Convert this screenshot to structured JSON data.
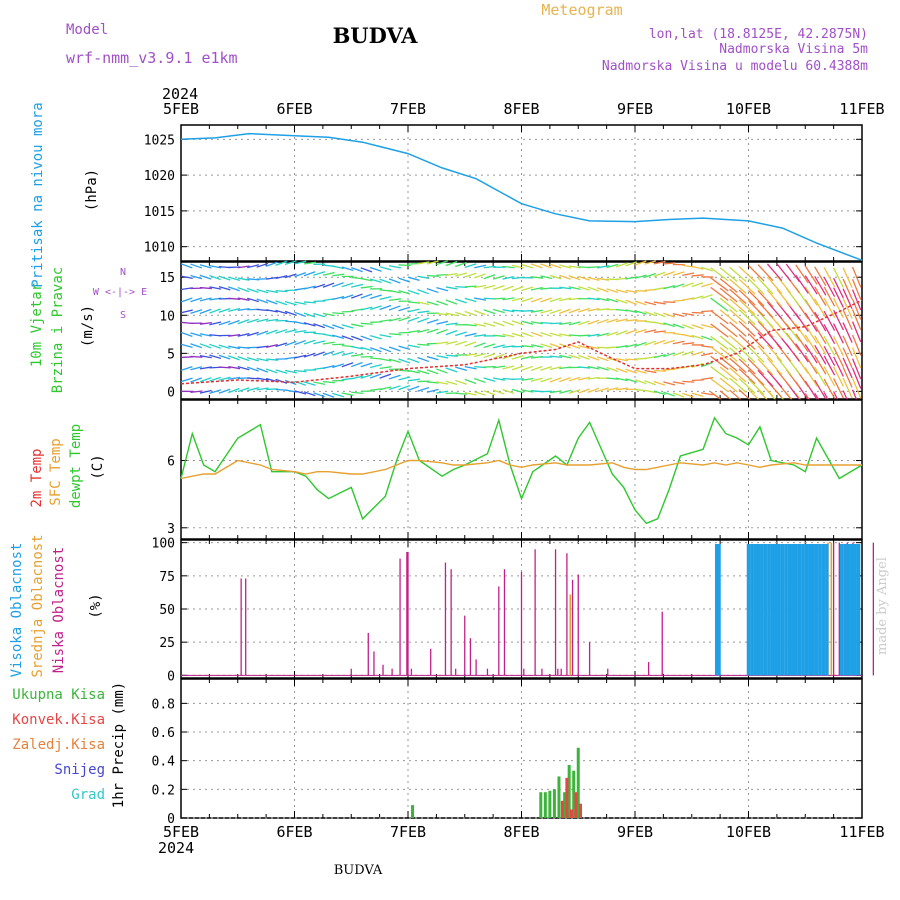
{
  "header": {
    "title": "BUDVA",
    "model_label": "Model",
    "model_name": "wrf-nmm_v3.9.1 e1km",
    "meteogram_label": "Meteogram",
    "lonlat": "lon,lat (18.8125E, 42.2875N)",
    "elevation": "Nadmorska Visina 5m",
    "model_elevation": "Nadmorska Visina u modelu 60.4388m",
    "year_top": "2024",
    "year_bottom": "2024",
    "footer_title": "BUDVA",
    "watermark": "made by Angel"
  },
  "time_axis": {
    "labels": [
      "5FEB",
      "6FEB",
      "7FEB",
      "8FEB",
      "9FEB",
      "10FEB",
      "11FEB"
    ]
  },
  "colors": {
    "pressure": "#1ea0e6",
    "dewpoint": "#2ec82e",
    "sfc_temp": "#e6a030",
    "temp2m": "#e63232",
    "low_cloud": "#c0208a",
    "mid_cloud": "#e6a030",
    "high_cloud": "#1ea0e6",
    "precip_total": "#3cb43c",
    "precip_conv": "#e64646",
    "precip_frozen": "#e6823c",
    "snow": "#4646d2",
    "hail": "#32c8c8",
    "purple_text": "#a050c8",
    "orange_text": "#e6b450"
  },
  "chart_data": [
    {
      "type": "line",
      "panel": "pressure",
      "ylabel": "Pritisak na nivou mora",
      "unit": "(hPa)",
      "ylim": [
        1008,
        1027
      ],
      "yticks": [
        1010,
        1015,
        1020,
        1025
      ],
      "grid": true,
      "x": [
        0,
        0.3,
        0.6,
        1.0,
        1.3,
        1.6,
        2.0,
        2.3,
        2.6,
        3.0,
        3.3,
        3.6,
        4.0,
        4.3,
        4.6,
        5.0,
        5.3,
        5.6,
        6.0
      ],
      "series": [
        {
          "values": [
            1025,
            1025.2,
            1025.8,
            1025.5,
            1025.3,
            1024.6,
            1023,
            1021,
            1019.5,
            1016,
            1014.6,
            1013.6,
            1013.5,
            1013.8,
            1014,
            1013.6,
            1012.6,
            1010.5,
            1008.1
          ]
        }
      ]
    },
    {
      "type": "line",
      "panel": "wind",
      "ylabel": "10m Vjetar",
      "ylabel2": "Brzina i Pravac",
      "unit": "(m/s)",
      "compass_label": "W <-|-> E",
      "compass_n": "N",
      "compass_s": "S",
      "ylim": [
        -1,
        17
      ],
      "yticks": [
        0,
        5,
        10,
        15
      ],
      "grid": true,
      "x": [
        0,
        0.5,
        1.0,
        1.5,
        2.0,
        2.5,
        3.0,
        3.3,
        3.5,
        3.7,
        4.0,
        4.3,
        4.6,
        4.9,
        5.2,
        5.5,
        5.8,
        6.0
      ],
      "series": [
        {
          "values": [
            1,
            1.5,
            1.2,
            2,
            3,
            3.5,
            5,
            5.5,
            6.5,
            5,
            3,
            3,
            3.5,
            5,
            8,
            8.5,
            10.5,
            12
          ]
        }
      ]
    },
    {
      "type": "line",
      "panel": "temperature",
      "ylabel": "2m Temp",
      "ylabel2": "SFC Temp",
      "ylabel3": "dewpt Temp",
      "unit": "(C)",
      "ylim": [
        2.5,
        8.7
      ],
      "yticks": [
        3,
        6
      ],
      "grid": true,
      "x": [
        0,
        0.1,
        0.2,
        0.3,
        0.5,
        0.7,
        0.8,
        1.0,
        1.1,
        1.2,
        1.3,
        1.5,
        1.6,
        1.8,
        1.9,
        2.0,
        2.1,
        2.3,
        2.4,
        2.5,
        2.7,
        2.8,
        2.9,
        3.0,
        3.1,
        3.3,
        3.4,
        3.5,
        3.6,
        3.8,
        3.9,
        4.0,
        4.1,
        4.2,
        4.3,
        4.4,
        4.6,
        4.7,
        4.8,
        4.9,
        5.0,
        5.1,
        5.2,
        5.4,
        5.5,
        5.6,
        5.8,
        6.0
      ],
      "series": [
        {
          "name": "dewpt Temp",
          "values": [
            5.2,
            7.2,
            5.8,
            5.5,
            7.0,
            7.6,
            5.5,
            5.5,
            5.3,
            4.7,
            4.3,
            4.8,
            3.4,
            4.4,
            6.0,
            7.3,
            6.0,
            5.3,
            5.6,
            5.8,
            6.3,
            7.8,
            5.8,
            4.3,
            5.5,
            6.2,
            5.8,
            7.0,
            7.7,
            5.4,
            4.8,
            3.8,
            3.2,
            3.4,
            4.7,
            6.2,
            6.5,
            7.9,
            7.2,
            7.0,
            6.7,
            7.5,
            6.0,
            5.8,
            5.5,
            7.0,
            5.2,
            5.8
          ]
        },
        {
          "name": "SFC Temp",
          "values": [
            5.2,
            5.3,
            5.4,
            5.4,
            6.0,
            5.8,
            5.6,
            5.5,
            5.4,
            5.5,
            5.5,
            5.4,
            5.4,
            5.6,
            5.8,
            6.0,
            6.0,
            5.9,
            5.8,
            5.8,
            5.9,
            6.0,
            5.8,
            5.7,
            5.8,
            5.9,
            5.8,
            5.8,
            5.8,
            5.9,
            5.7,
            5.6,
            5.6,
            5.7,
            5.8,
            5.9,
            5.8,
            5.9,
            5.8,
            5.9,
            5.8,
            5.7,
            5.8,
            5.9,
            5.8,
            5.8,
            5.8,
            5.8
          ]
        }
      ]
    },
    {
      "type": "bar",
      "panel": "cloud",
      "ylabel": "Visoka Oblacnost",
      "ylabel2": "Srednja Oblacnost",
      "ylabel3": "Niska Oblacnost",
      "unit": "(%)",
      "ylim": [
        -2,
        102
      ],
      "yticks": [
        0,
        25,
        50,
        75,
        100
      ],
      "grid": true,
      "series": [
        {
          "name": "Niska Oblacnost",
          "x": [
            0.53,
            0.57,
            1.5,
            1.65,
            1.7,
            1.78,
            1.86,
            1.93,
            1.99,
            2.0,
            2.03,
            2.2,
            2.33,
            2.38,
            2.42,
            2.5,
            2.55,
            2.6,
            2.7,
            2.8,
            2.85,
            3.0,
            3.02,
            3.12,
            3.18,
            3.3,
            3.32,
            3.35,
            3.4,
            3.45,
            3.5,
            3.6,
            3.76,
            4.12,
            4.24,
            5.75,
            5.8,
            5.87,
            5.92,
            6.1
          ],
          "values": [
            73,
            73,
            5,
            32,
            18,
            8,
            5,
            88,
            93,
            93,
            5,
            20,
            85,
            80,
            5,
            45,
            28,
            12,
            5,
            67,
            80,
            78,
            5,
            95,
            5,
            95,
            5,
            5,
            92,
            72,
            76,
            25,
            5,
            10,
            48,
            100,
            100,
            100,
            100,
            100
          ]
        },
        {
          "name": "Srednja Oblacnost",
          "x": [
            3.43,
            5.7,
            5.73
          ],
          "values": [
            61,
            100,
            100
          ]
        },
        {
          "name": "Visoka Oblacnost",
          "x": [
            4.72,
            4.74,
            5.0,
            5.03,
            5.06,
            5.09,
            5.12,
            5.15,
            5.18,
            5.21,
            5.24,
            5.27,
            5.3,
            5.33,
            5.36,
            5.39,
            5.42,
            5.45,
            5.48,
            5.51,
            5.54,
            5.57,
            5.6,
            5.63,
            5.66,
            5.69,
            5.82,
            5.85,
            5.88,
            5.91,
            5.94,
            5.97
          ],
          "values": [
            99,
            99,
            99,
            99,
            99,
            99,
            99,
            99,
            99,
            99,
            99,
            99,
            99,
            99,
            99,
            99,
            99,
            99,
            99,
            99,
            99,
            99,
            99,
            99,
            99,
            99,
            99,
            99,
            99,
            99,
            99,
            99
          ]
        }
      ]
    },
    {
      "type": "bar",
      "panel": "precip",
      "legend": [
        "Ukupna Kisa",
        "Konvek.Kisa",
        "Zaledj.Kisa",
        "Snijeg",
        "Grad"
      ],
      "ylabel": "1hr Precip (mm)",
      "ylim": [
        0,
        0.97
      ],
      "yticks": [
        0,
        0.2,
        0.4,
        0.6,
        0.8
      ],
      "grid": true,
      "series": [
        {
          "name": "Ukupna Kisa",
          "x": [
            2.04,
            3.17,
            3.21,
            3.25,
            3.29,
            3.33,
            3.38,
            3.42,
            3.46,
            3.5
          ],
          "values": [
            0.09,
            0.18,
            0.18,
            0.19,
            0.2,
            0.29,
            0.18,
            0.37,
            0.33,
            0.49
          ]
        },
        {
          "name": "Konvek.Kisa",
          "x": [
            3.36,
            3.4,
            3.44,
            3.48,
            3.52
          ],
          "values": [
            0.12,
            0.28,
            0.06,
            0.18,
            0.1
          ]
        }
      ]
    }
  ]
}
